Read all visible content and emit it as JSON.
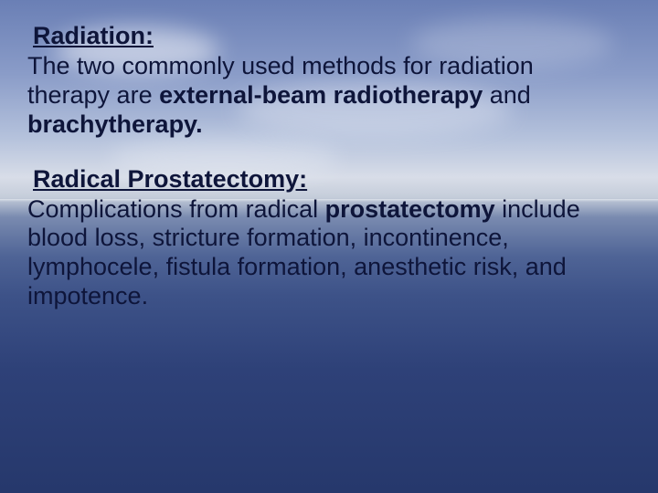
{
  "slide": {
    "background": {
      "gradient_stops": [
        "#6a7fb5",
        "#8a9cc8",
        "#b5c2dc",
        "#d8dde8",
        "#c5cdda",
        "#7a8bb0",
        "#4f6496",
        "#3d5288",
        "#2e4178",
        "#26386c"
      ],
      "horizon_color": "#e8ecf2",
      "cloud_color": "#ffffff"
    },
    "text_color": "#0e153a",
    "heading_fontsize": 27,
    "body_fontsize": 27,
    "sections": [
      {
        "heading": "Radiation:",
        "body_prefix": "The two commonly used methods for radiation therapy are ",
        "bold1": "external-beam radiotherapy",
        "mid": " and ",
        "bold2": "brachytherapy."
      },
      {
        "heading": "Radical Prostatectomy:",
        "body_prefix": "Complications from radical ",
        "bold1": "prostatectomy",
        "tail": " include blood loss, stricture formation, incontinence, lymphocele, fistula formation, anesthetic risk, and impotence."
      }
    ]
  }
}
